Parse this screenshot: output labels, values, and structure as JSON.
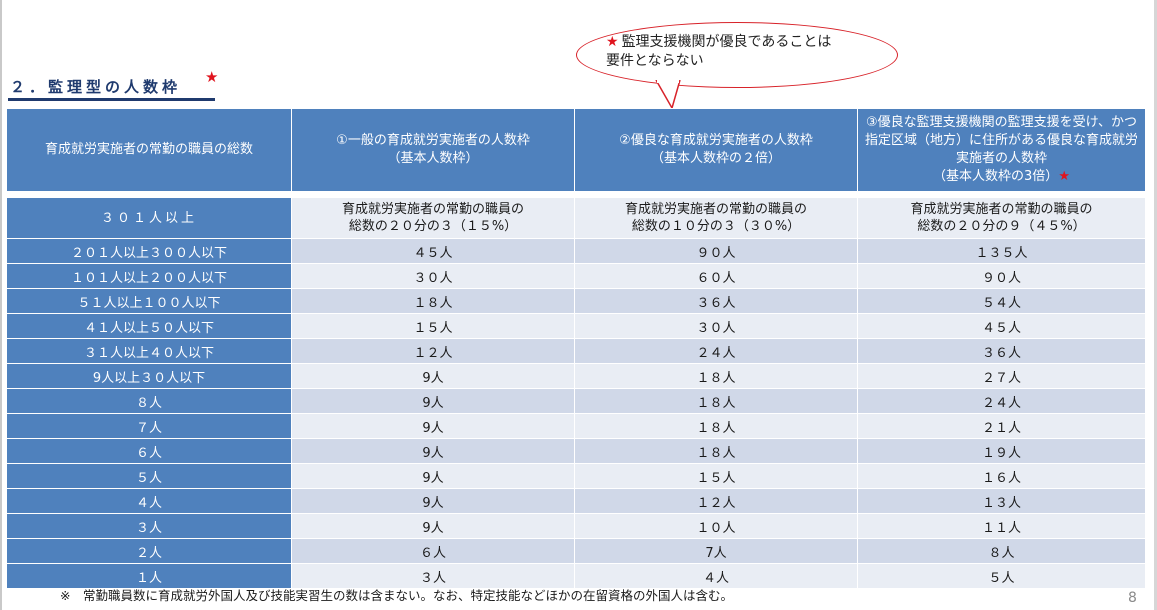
{
  "section": {
    "title": "２．監理型の人数枠",
    "star": "★"
  },
  "callout": {
    "star": "★",
    "line1": "監理支援機関が優良であることは",
    "line2": "要件とならない"
  },
  "table": {
    "headers": [
      "育成就労実施者の常勤の職員の総数",
      "①一般の育成就労実施者の人数枠\n（基本人数枠）",
      "②優良な育成就労実施者の人数枠\n（基本人数枠の２倍）",
      "③優良な監理支援機関の監理支援を受け、かつ指定区域（地方）に住所がある優良な育成就労実施者の人数枠\n（基本人数枠の3倍）"
    ],
    "header_star": "★",
    "rows": [
      {
        "label": "３０１人以上",
        "c1": "育成就労実施者の常勤の職員の\n総数の２０分の３（１５%）",
        "c2": "育成就労実施者の常勤の職員の\n総数の１０分の３（３０%）",
        "c3": "育成就労実施者の常勤の職員の\n総数の２０分の９（４５%）"
      },
      {
        "label": "２０１人以上３００人以下",
        "c1": "４５人",
        "c2": "９０人",
        "c3": "１３５人"
      },
      {
        "label": "１０１人以上２００人以下",
        "c1": "３０人",
        "c2": "６０人",
        "c3": "９０人"
      },
      {
        "label": "５１人以上１００人以下",
        "c1": "１８人",
        "c2": "３６人",
        "c3": "５４人"
      },
      {
        "label": "４１人以上５０人以下",
        "c1": "１５人",
        "c2": "３０人",
        "c3": "４５人"
      },
      {
        "label": "３１人以上４０人以下",
        "c1": "１２人",
        "c2": "２４人",
        "c3": "３６人"
      },
      {
        "label": "9人以上３０人以下",
        "c1": "9人",
        "c2": "１８人",
        "c3": "２７人"
      },
      {
        "label": "８人",
        "c1": "9人",
        "c2": "１８人",
        "c3": "２４人"
      },
      {
        "label": "７人",
        "c1": "9人",
        "c2": "１８人",
        "c3": "２１人"
      },
      {
        "label": "６人",
        "c1": "9人",
        "c2": "１８人",
        "c3": "１９人"
      },
      {
        "label": "５人",
        "c1": "9人",
        "c2": "１５人",
        "c3": "１６人"
      },
      {
        "label": "４人",
        "c1": "9人",
        "c2": "１２人",
        "c3": "１３人"
      },
      {
        "label": "３人",
        "c1": "9人",
        "c2": "１０人",
        "c3": "１１人"
      },
      {
        "label": "２人",
        "c1": "６人",
        "c2": "7人",
        "c3": "８人"
      },
      {
        "label": "１人",
        "c1": "３人",
        "c2": "４人",
        "c3": "５人"
      }
    ]
  },
  "footnote": "※　常勤職員数に育成就労外国人及び技能実習生の数は含まない。なお、特定技能などほかの在留資格の外国人は含む。",
  "page_number": "8",
  "colors": {
    "header_blue": "#4f81bd",
    "row_light": "#e9edf4",
    "row_dark": "#d0d8e8",
    "accent_red": "#e0141e",
    "title_navy": "#1f3a6e"
  }
}
